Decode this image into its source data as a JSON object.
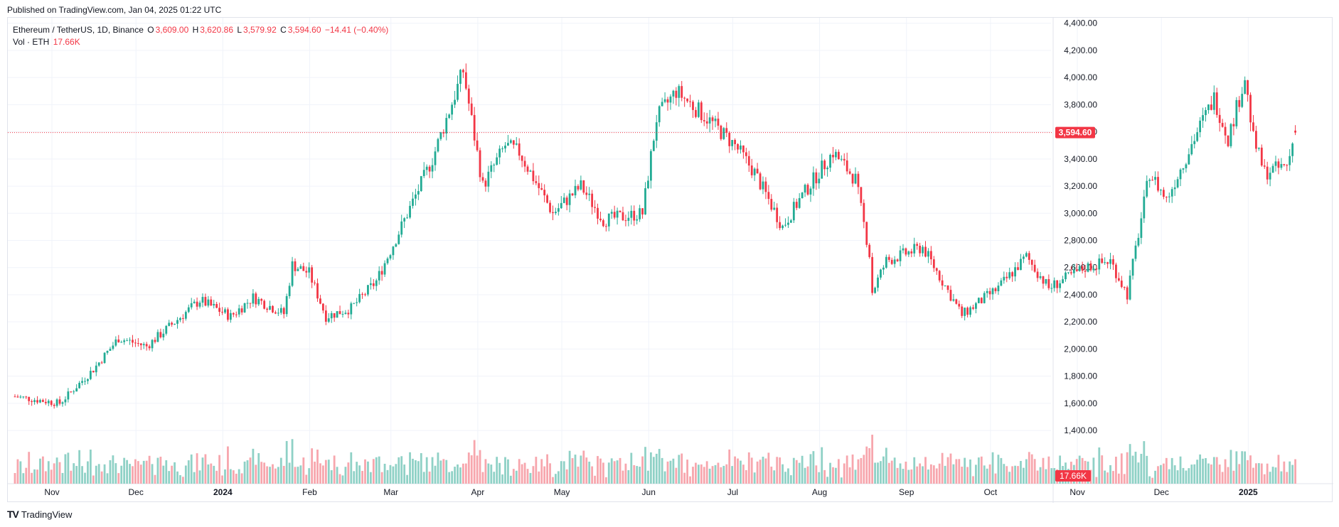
{
  "published": "Published on TradingView.com, Jan 04, 2025 01:22 UTC",
  "legend": {
    "symbol": "Ethereum / TetherUS, 1D, Binance",
    "o_label": "O",
    "o_value": "3,609.00",
    "h_label": "H",
    "h_value": "3,620.86",
    "l_label": "L",
    "l_value": "3,579.92",
    "c_label": "C",
    "c_value": "3,594.60",
    "change": "−14.41 (−0.40%)",
    "vol_label": "Vol · ETH",
    "vol_value": "17.66K"
  },
  "footer": {
    "brand": "TradingView"
  },
  "colors": {
    "up": "#22ab94",
    "down": "#f23645",
    "up_vol": "#8fd1c6",
    "down_vol": "#f7a6ad",
    "grid": "#f0f3fa",
    "axis_text": "#131722"
  },
  "chart_data": {
    "type": "candlestick",
    "price_axis": {
      "ticks": [
        1400,
        1600,
        1800,
        2000,
        2200,
        2400,
        2600,
        2800,
        3000,
        3200,
        3400,
        3600,
        3800,
        4000,
        4200,
        4400
      ],
      "tick_labels": [
        "1,400.00",
        "1,600.00",
        "1,800.00",
        "2,000.00",
        "2,200.00",
        "2,400.00",
        "2,600.00",
        "2,800.00",
        "3,000.00",
        "3,200.00",
        "3,400.00",
        "3,600.00",
        "3,800.00",
        "4,000.00",
        "4,200.00",
        "4,400.00"
      ],
      "ylim": [
        1280,
        4430
      ]
    },
    "time_axis": {
      "labels": [
        "Nov",
        "Dec",
        "2024",
        "Feb",
        "Mar",
        "Apr",
        "May",
        "Jun",
        "Jul",
        "Aug",
        "Sep",
        "Oct",
        "Nov",
        "Dec",
        "2025"
      ],
      "label_days": [
        0,
        30,
        61,
        92,
        121,
        152,
        182,
        213,
        243,
        274,
        305,
        335,
        366,
        396,
        427
      ]
    },
    "last_price": 3594.6,
    "last_price_label": "3,594.60",
    "last_volume_label": "17.66K",
    "key_points": [
      {
        "date": "2023-10-04",
        "close": 1650
      },
      {
        "date": "2023-10-20",
        "close": 1600
      },
      {
        "date": "2023-11-01",
        "close": 1850
      },
      {
        "date": "2023-11-10",
        "close": 2080
      },
      {
        "date": "2023-11-20",
        "close": 2020
      },
      {
        "date": "2023-12-09",
        "close": 2360
      },
      {
        "date": "2023-12-20",
        "close": 2240
      },
      {
        "date": "2023-12-28",
        "close": 2380
      },
      {
        "date": "2024-01-08",
        "close": 2260
      },
      {
        "date": "2024-01-11",
        "close": 2620
      },
      {
        "date": "2024-01-17",
        "close": 2560
      },
      {
        "date": "2024-01-23",
        "close": 2240
      },
      {
        "date": "2024-02-01",
        "close": 2300
      },
      {
        "date": "2024-02-10",
        "close": 2500
      },
      {
        "date": "2024-02-20",
        "close": 2950
      },
      {
        "date": "2024-03-01",
        "close": 3400
      },
      {
        "date": "2024-03-12",
        "close": 4050
      },
      {
        "date": "2024-03-19",
        "close": 3200
      },
      {
        "date": "2024-03-27",
        "close": 3500
      },
      {
        "date": "2024-04-01",
        "close": 3450
      },
      {
        "date": "2024-04-13",
        "close": 3000
      },
      {
        "date": "2024-04-23",
        "close": 3200
      },
      {
        "date": "2024-05-01",
        "close": 2950
      },
      {
        "date": "2024-05-15",
        "close": 3000
      },
      {
        "date": "2024-05-20",
        "close": 3700
      },
      {
        "date": "2024-05-27",
        "close": 3900
      },
      {
        "date": "2024-06-07",
        "close": 3700
      },
      {
        "date": "2024-06-17",
        "close": 3500
      },
      {
        "date": "2024-06-24",
        "close": 3300
      },
      {
        "date": "2024-07-04",
        "close": 2900
      },
      {
        "date": "2024-07-10",
        "close": 3100
      },
      {
        "date": "2024-07-22",
        "close": 3450
      },
      {
        "date": "2024-07-30",
        "close": 3250
      },
      {
        "date": "2024-08-04",
        "close": 2700
      },
      {
        "date": "2024-08-05",
        "close": 2420
      },
      {
        "date": "2024-08-10",
        "close": 2650
      },
      {
        "date": "2024-08-23",
        "close": 2750
      },
      {
        "date": "2024-09-06",
        "close": 2250
      },
      {
        "date": "2024-09-19",
        "close": 2450
      },
      {
        "date": "2024-09-29",
        "close": 2680
      },
      {
        "date": "2024-10-07",
        "close": 2450
      },
      {
        "date": "2024-10-20",
        "close": 2600
      },
      {
        "date": "2024-10-29",
        "close": 2650
      },
      {
        "date": "2024-11-04",
        "close": 2400
      },
      {
        "date": "2024-11-12",
        "close": 3300
      },
      {
        "date": "2024-11-18",
        "close": 3100
      },
      {
        "date": "2024-11-29",
        "close": 3600
      },
      {
        "date": "2024-12-05",
        "close": 3850
      },
      {
        "date": "2024-12-10",
        "close": 3550
      },
      {
        "date": "2024-12-16",
        "close": 4000
      },
      {
        "date": "2024-12-19",
        "close": 3550
      },
      {
        "date": "2024-12-23",
        "close": 3300
      },
      {
        "date": "2024-12-31",
        "close": 3350
      },
      {
        "date": "2025-01-03",
        "close": 3594.6
      }
    ]
  }
}
